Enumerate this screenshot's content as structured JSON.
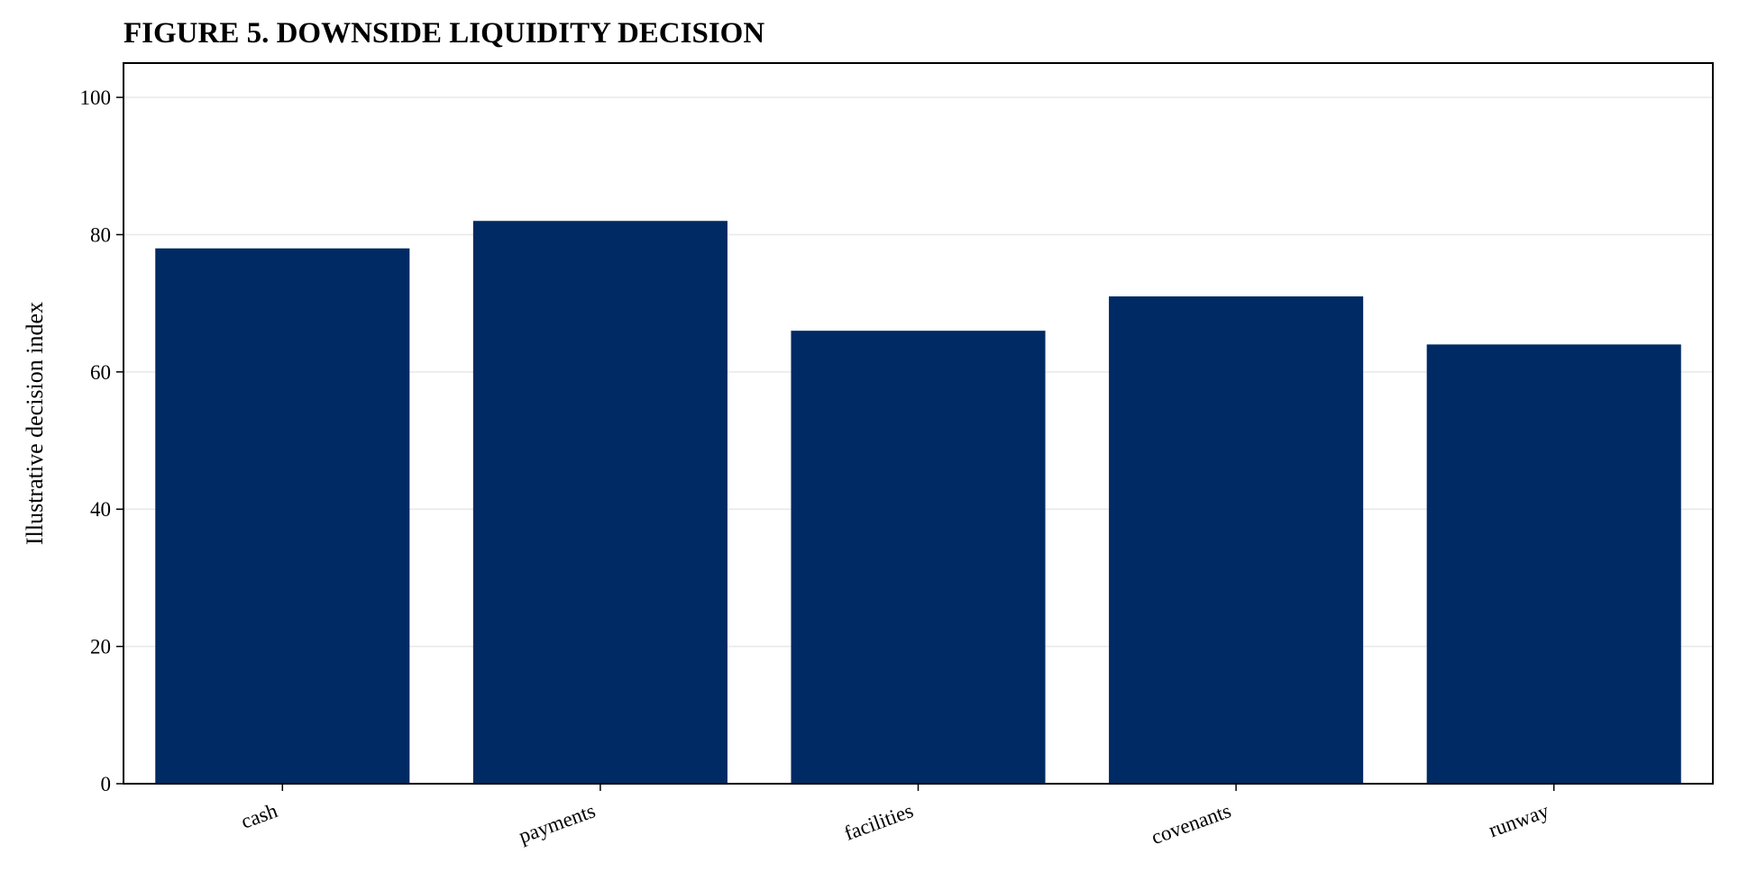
{
  "chart_data": {
    "type": "bar",
    "title": "FIGURE 5. DOWNSIDE LIQUIDITY DECISION",
    "xlabel": "",
    "ylabel": "Illustrative decision index",
    "categories": [
      "cash",
      "payments",
      "facilities",
      "covenants",
      "runway"
    ],
    "values": [
      78,
      82,
      66,
      71,
      64
    ],
    "ylim": [
      0,
      105
    ],
    "yticks": [
      0,
      20,
      40,
      60,
      80,
      100
    ],
    "grid": "horizontal",
    "legend": "none",
    "colors": {
      "bar": "#002A63",
      "grid": "#e8e8e8",
      "axis": "#000000"
    }
  }
}
